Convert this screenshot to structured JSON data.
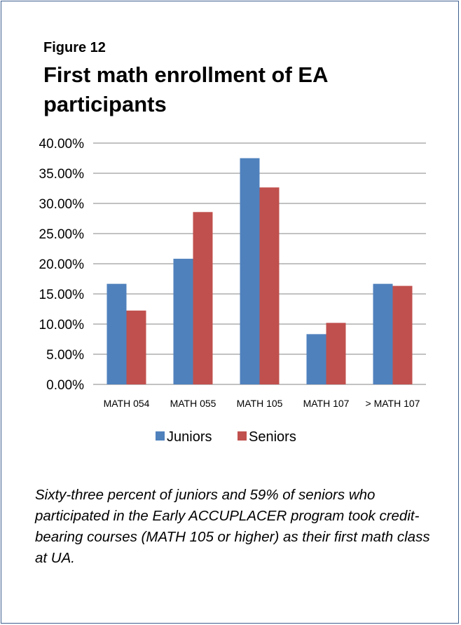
{
  "figure_label": "Figure 12",
  "title": "First math enrollment of EA participants",
  "caption": "Sixty-three percent of juniors and 59% of seniors who participated in the Early ACCUPLACER program took credit-bearing courses (MATH 105 or higher) as their first math class at UA.",
  "colors": {
    "juniors": "#4f81bd",
    "seniors": "#c0504d",
    "grid": "#868686"
  },
  "chart_data": {
    "type": "bar",
    "title": "First math enrollment of EA participants",
    "xlabel": "",
    "ylabel": "",
    "categories": [
      "MATH 054",
      "MATH 055",
      "MATH 105",
      "MATH 107",
      "> MATH 107"
    ],
    "series": [
      {
        "name": "Juniors",
        "values": [
          16.67,
          20.83,
          37.5,
          8.33,
          16.67
        ]
      },
      {
        "name": "Seniors",
        "values": [
          12.24,
          28.57,
          32.65,
          10.2,
          16.33
        ]
      }
    ],
    "ylim": [
      0,
      40
    ],
    "yticks": [
      "0.00%",
      "5.00%",
      "10.00%",
      "15.00%",
      "20.00%",
      "25.00%",
      "30.00%",
      "35.00%",
      "40.00%"
    ],
    "grid": true,
    "legend_position": "bottom"
  }
}
